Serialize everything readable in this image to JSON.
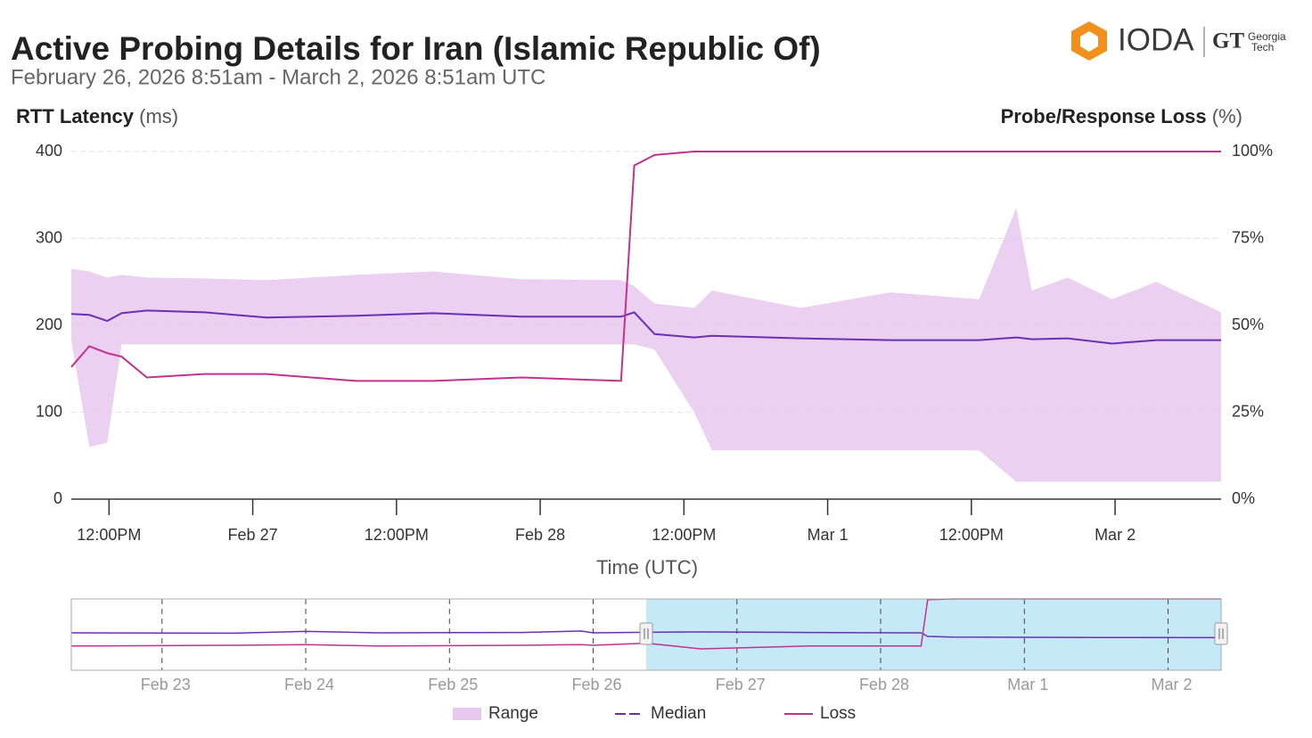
{
  "chart_data": {
    "type": "line",
    "title": "Active Probing Details for Iran (Islamic Republic Of)",
    "subtitle": "February 26, 2026 8:51am - March 2, 2026 8:51am UTC",
    "ylabel": "RTT Latency",
    "ylabel_unit": "(ms)",
    "y2label": "Probe/Response Loss",
    "y2label_unit": "(%)",
    "xlabel": "Time (UTC)",
    "x": [
      "2026-02-26T08:51",
      "2026-02-26T10:21",
      "2026-02-26T11:51",
      "2026-02-26T13:03",
      "2026-02-26T15:09",
      "2026-02-26T19:57",
      "2026-02-27T01:09",
      "2026-02-27T08:39",
      "2026-02-27T15:03",
      "2026-02-27T22:27",
      "2026-02-28T06:45",
      "2026-02-28T07:51",
      "2026-02-28T09:33",
      "2026-02-28T12:51",
      "2026-02-28T14:21",
      "2026-02-28T21:45",
      "2026-03-01T05:15",
      "2026-03-01T12:39",
      "2026-03-01T15:45",
      "2026-03-01T17:03",
      "2026-03-01T20:03",
      "2026-03-01T23:45",
      "2026-03-02T03:27",
      "2026-03-02T08:51"
    ],
    "xlim": [
      "2026-02-26T08:51",
      "2026-03-02T08:51"
    ],
    "xticks": [
      {
        "value": "2026-02-26T12:00",
        "label": "12:00PM"
      },
      {
        "value": "2026-02-27T00:00",
        "label": "Feb 27"
      },
      {
        "value": "2026-02-27T12:00",
        "label": "12:00PM"
      },
      {
        "value": "2026-02-28T00:00",
        "label": "Feb 28"
      },
      {
        "value": "2026-02-28T12:00",
        "label": "12:00PM"
      },
      {
        "value": "2026-03-01T00:00",
        "label": "Mar 1"
      },
      {
        "value": "2026-03-01T12:00",
        "label": "12:00PM"
      },
      {
        "value": "2026-03-02T00:00",
        "label": "Mar 2"
      }
    ],
    "ylim": [
      0,
      400
    ],
    "yticks": [
      0,
      100,
      200,
      300,
      400
    ],
    "y2lim": [
      0,
      100
    ],
    "y2ticks": [
      {
        "value": 0,
        "label": "0%"
      },
      {
        "value": 25,
        "label": "25%"
      },
      {
        "value": 50,
        "label": "50%"
      },
      {
        "value": 75,
        "label": "75%"
      },
      {
        "value": 100,
        "label": "100%"
      }
    ],
    "grid": true,
    "series": [
      {
        "name": "Range",
        "type": "band",
        "color": "#e8c8ef",
        "low": [
          183,
          60,
          65,
          178,
          178,
          178,
          178,
          178,
          178,
          178,
          178,
          178,
          172,
          100,
          56,
          56,
          56,
          56,
          20,
          20,
          20,
          20,
          20,
          20
        ],
        "high": [
          265,
          262,
          255,
          258,
          255,
          254,
          252,
          258,
          262,
          253,
          252,
          245,
          225,
          220,
          240,
          220,
          238,
          230,
          335,
          240,
          255,
          230,
          250,
          215
        ]
      },
      {
        "name": "Median",
        "color": "#6a30b4",
        "values": [
          213,
          212,
          205,
          214,
          217,
          215,
          209,
          211,
          214,
          210,
          210,
          215,
          190,
          186,
          188,
          185,
          183,
          183,
          186,
          184,
          185,
          179,
          183,
          183
        ]
      },
      {
        "name": "Loss",
        "color": "#c0328c",
        "axis": "y2",
        "values": [
          38,
          44,
          42,
          41,
          35,
          36,
          36,
          34,
          34,
          35,
          34,
          96,
          99,
          100,
          100,
          100,
          100,
          100,
          100,
          100,
          100,
          100,
          100,
          100
        ]
      }
    ],
    "navigator": {
      "x": [
        "2026-02-22T08:51",
        "2026-02-23T12:00",
        "2026-02-24T00:00",
        "2026-02-24T12:00",
        "2026-02-25T12:00",
        "2026-02-25T22:00",
        "2026-02-26T00:00",
        "2026-02-26T08:51",
        "2026-02-26T18:00",
        "2026-02-27T12:00",
        "2026-02-28T06:45",
        "2026-02-28T07:51",
        "2026-02-28T12:00",
        "2026-03-01T12:00",
        "2026-03-02T08:51"
      ],
      "median": [
        210,
        208,
        218,
        210,
        212,
        220,
        210,
        213,
        215,
        212,
        210,
        190,
        186,
        184,
        183
      ],
      "loss": [
        34,
        35,
        36,
        34,
        35,
        36,
        35,
        38,
        30,
        34,
        34,
        99,
        100,
        100,
        100
      ],
      "xlim": [
        "2026-02-22T08:51",
        "2026-03-02T08:51"
      ],
      "xticks": [
        {
          "value": "2026-02-23T00:00",
          "label": "Feb 23"
        },
        {
          "value": "2026-02-24T00:00",
          "label": "Feb 24"
        },
        {
          "value": "2026-02-25T00:00",
          "label": "Feb 25"
        },
        {
          "value": "2026-02-26T00:00",
          "label": "Feb 26"
        },
        {
          "value": "2026-02-27T00:00",
          "label": "Feb 27"
        },
        {
          "value": "2026-02-28T00:00",
          "label": "Feb 28"
        },
        {
          "value": "2026-03-01T00:00",
          "label": "Mar 1"
        },
        {
          "value": "2026-03-02T00:00",
          "label": "Mar 2"
        }
      ],
      "selection": [
        "2026-02-26T08:51",
        "2026-03-02T08:51"
      ]
    }
  },
  "logo": {
    "name": "IODA",
    "partner_mark": "GT",
    "partner_line1": "Georgia",
    "partner_line2": "Tech"
  }
}
